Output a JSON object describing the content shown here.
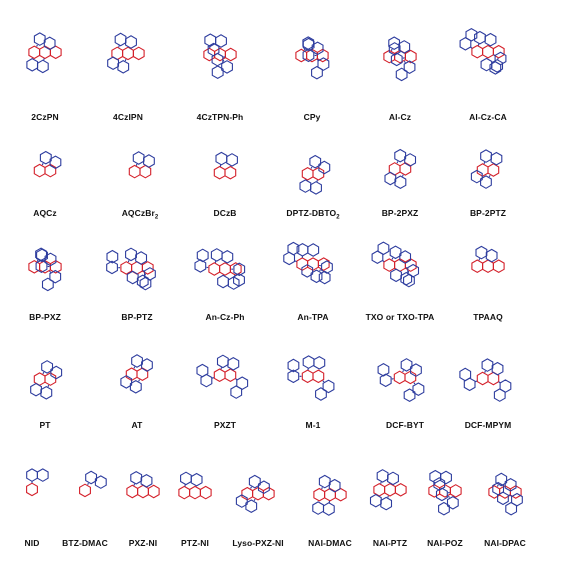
{
  "colors": {
    "donor": "#2d3c9e",
    "acceptor": "#d4202a",
    "label": "#111111"
  },
  "rows": [
    [
      {
        "name": "2CzPN",
        "sub": "",
        "tail": ""
      },
      {
        "name": "4CzIPN",
        "sub": "",
        "tail": ""
      },
      {
        "name": "4CzTPN-Ph",
        "sub": "",
        "tail": ""
      },
      {
        "name": "CPy",
        "sub": "",
        "tail": ""
      },
      {
        "name": "Al-Cz",
        "sub": "",
        "tail": ""
      },
      {
        "name": "Al-Cz-CA",
        "sub": "",
        "tail": ""
      }
    ],
    [
      {
        "name": "AQCz",
        "sub": "",
        "tail": ""
      },
      {
        "name": "AQCzBr",
        "sub": "2",
        "tail": ""
      },
      {
        "name": "DCzB",
        "sub": "",
        "tail": ""
      },
      {
        "name": "DPTZ-DBTO",
        "sub": "2",
        "tail": ""
      },
      {
        "name": "BP-2PXZ",
        "sub": "",
        "tail": ""
      },
      {
        "name": "BP-2PTZ",
        "sub": "",
        "tail": ""
      }
    ],
    [
      {
        "name": "BP-PXZ",
        "sub": "",
        "tail": ""
      },
      {
        "name": "BP-PTZ",
        "sub": "",
        "tail": ""
      },
      {
        "name": "An-Cz-Ph",
        "sub": "",
        "tail": ""
      },
      {
        "name": "An-TPA",
        "sub": "",
        "tail": ""
      },
      {
        "name": "TXO  or  TXO-TPA",
        "sub": "",
        "tail": ""
      },
      {
        "name": "TPAAQ",
        "sub": "",
        "tail": ""
      }
    ],
    [
      {
        "name": "PT",
        "sub": "",
        "tail": ""
      },
      {
        "name": "AT",
        "sub": "",
        "tail": ""
      },
      {
        "name": "PXZT",
        "sub": "",
        "tail": ""
      },
      {
        "name": "M-1",
        "sub": "",
        "tail": ""
      },
      {
        "name": "DCF-BYT",
        "sub": "",
        "tail": ""
      },
      {
        "name": "DCF-MPYM",
        "sub": "",
        "tail": ""
      }
    ],
    [
      {
        "name": "NID",
        "sub": "",
        "tail": ""
      },
      {
        "name": "BTZ-DMAC",
        "sub": "",
        "tail": ""
      },
      {
        "name": "PXZ-NI",
        "sub": "",
        "tail": ""
      },
      {
        "name": "PTZ-NI",
        "sub": "",
        "tail": ""
      },
      {
        "name": "Lyso-PXZ-NI",
        "sub": "",
        "tail": ""
      },
      {
        "name": "NAI-DMAC",
        "sub": "",
        "tail": ""
      },
      {
        "name": "NAI-PTZ",
        "sub": "",
        "tail": ""
      },
      {
        "name": "NAI-POZ",
        "sub": "",
        "tail": ""
      },
      {
        "name": "NAI-DPAC",
        "sub": "",
        "tail": ""
      }
    ]
  ]
}
